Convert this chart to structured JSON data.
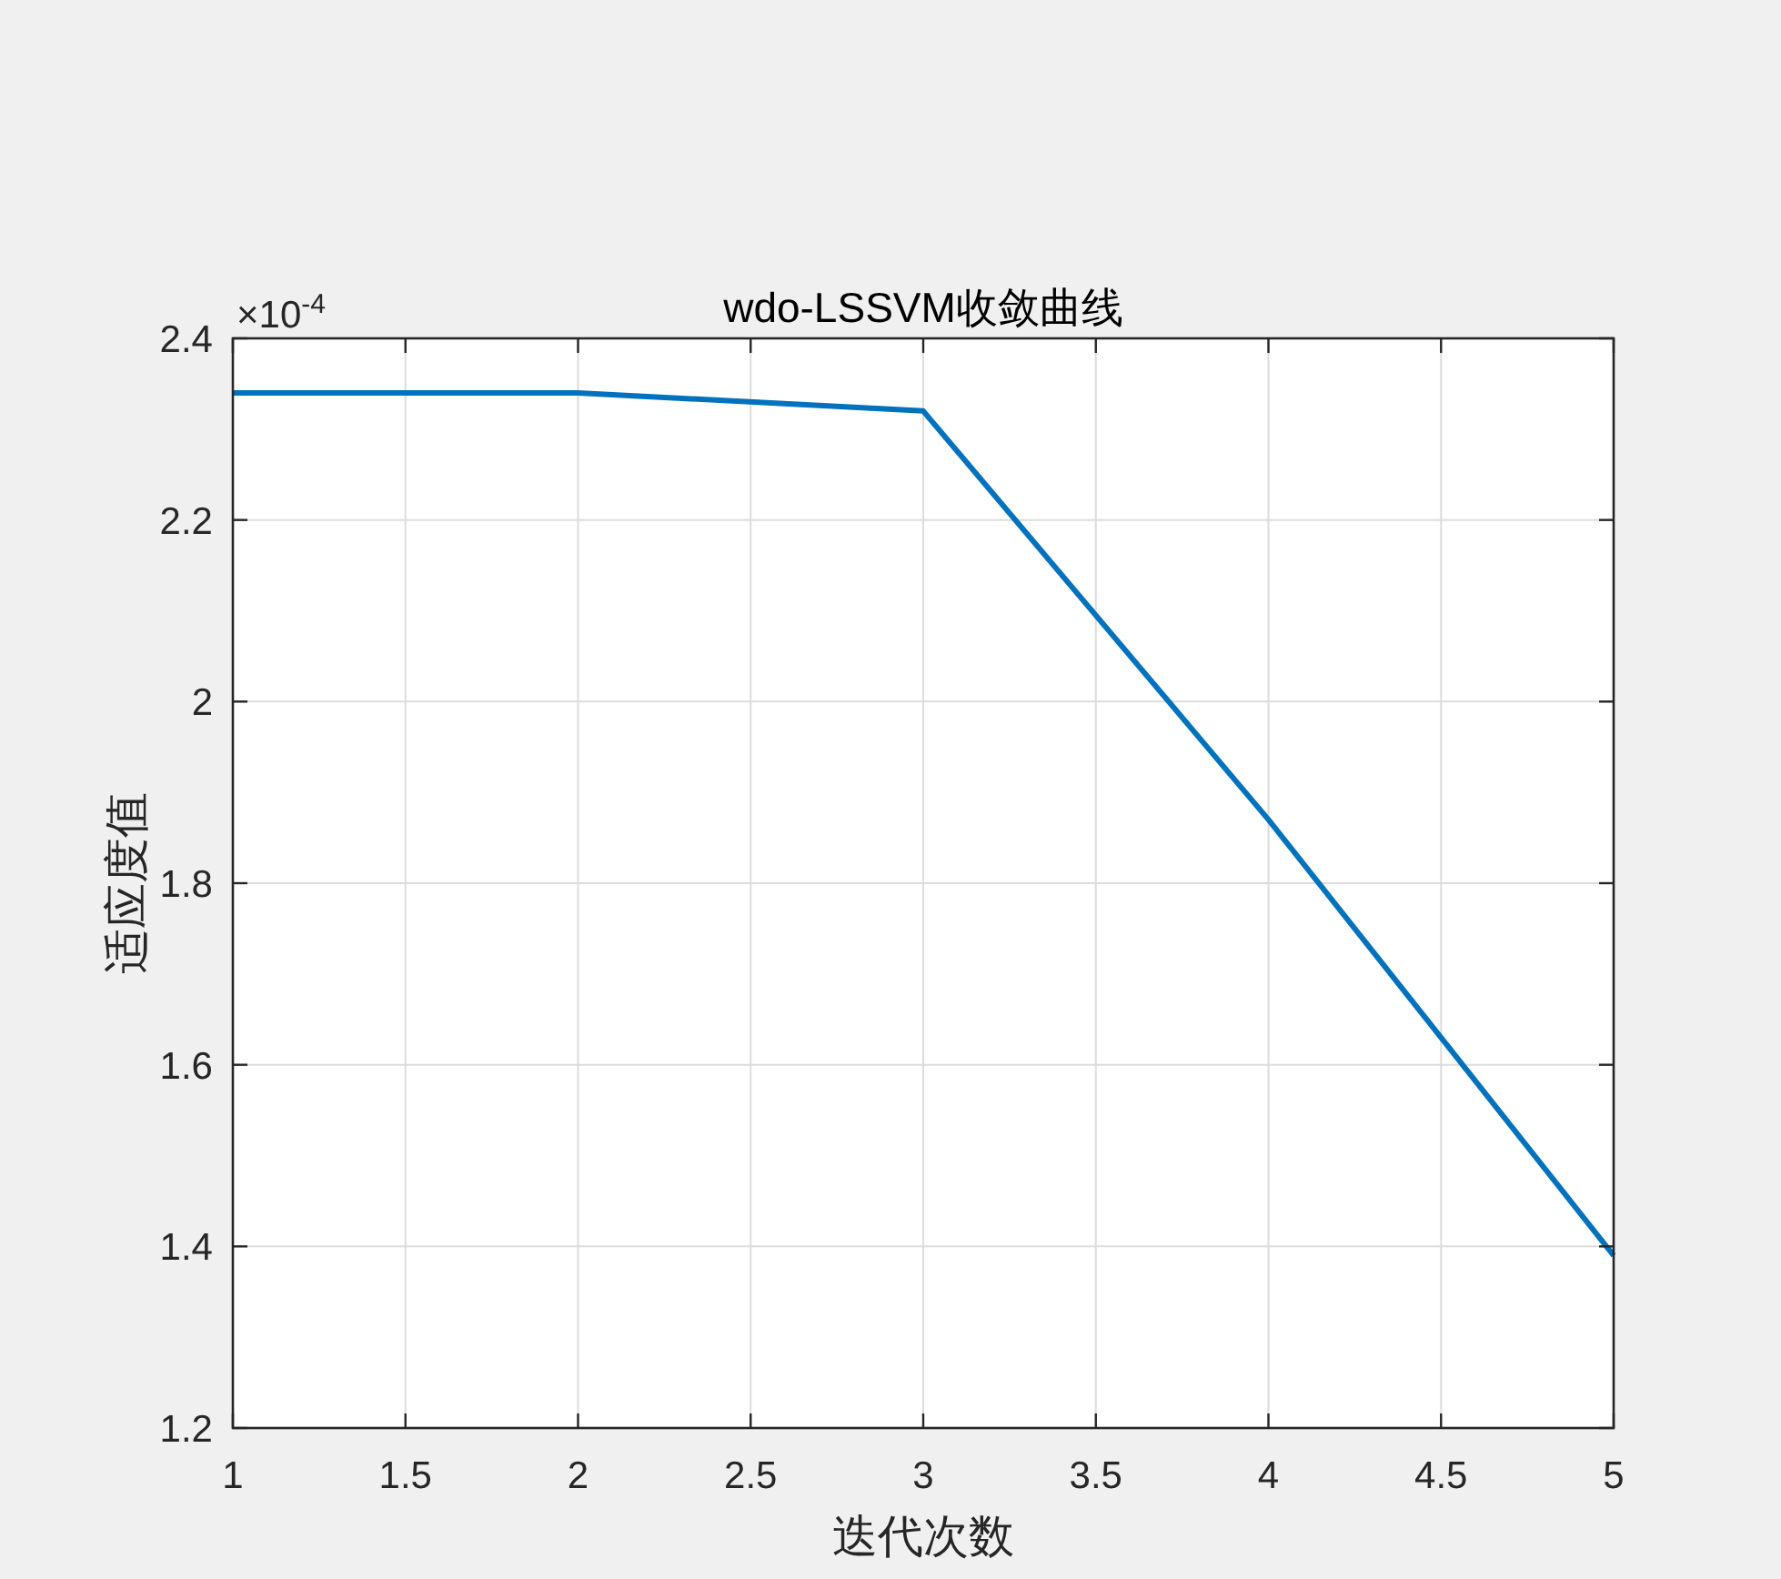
{
  "chart_data": {
    "type": "line",
    "title": "wdo-LSSVM收敛曲线",
    "xlabel": "迭代次数",
    "ylabel": "适应度值",
    "x": [
      1,
      2,
      3,
      4,
      5
    ],
    "series": [
      {
        "color": "#0072bd",
        "values": [
          2.34,
          2.34,
          2.32,
          1.87,
          1.39
        ]
      }
    ],
    "xlim": [
      1,
      5
    ],
    "ylim": [
      1.2,
      2.4
    ],
    "xticks": [
      1,
      1.5,
      2,
      2.5,
      3,
      3.5,
      4,
      4.5,
      5
    ],
    "yticks": [
      1.2,
      1.4,
      1.6,
      1.8,
      2,
      2.2,
      2.4
    ],
    "grid": true,
    "line_style": "solid",
    "annotations": [
      "×10$^{-4}$"
    ]
  }
}
